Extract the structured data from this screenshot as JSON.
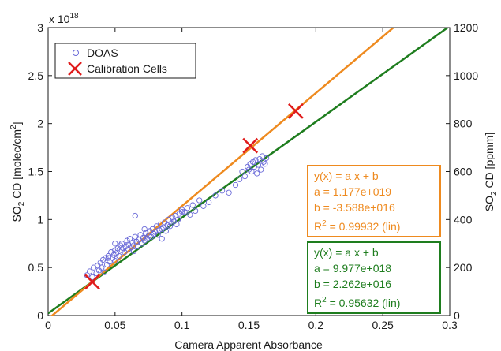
{
  "chart_data": {
    "type": "scatter",
    "xlabel": "Camera Apparent Absorbance",
    "ylabel": {
      "base": "SO",
      "sub": "2",
      "rest": " CD [molec/cm",
      "sup": "2",
      "end": "]"
    },
    "y2label": {
      "base": "SO",
      "sub": "2",
      "rest": " CD [ppmm]"
    },
    "exponent": {
      "prefix": "x 10",
      "power": "18"
    },
    "xlim": [
      0,
      0.3
    ],
    "ylim": [
      0,
      3
    ],
    "y2lim": [
      0,
      1200
    ],
    "xticks": [
      "0",
      "0.05",
      "0.1",
      "0.15",
      "0.2",
      "0.25",
      "0.3"
    ],
    "yticks": [
      "0",
      "0.5",
      "1",
      "1.5",
      "2",
      "2.5",
      "3"
    ],
    "y2ticks": [
      "0",
      "200",
      "400",
      "600",
      "800",
      "1000",
      "1200"
    ],
    "legend": {
      "position": "top-left",
      "entries": [
        {
          "label": "DOAS",
          "marker": "circle",
          "color": "#6a6ad8"
        },
        {
          "label": "Calibration Cells",
          "marker": "x",
          "color": "#e01b1b"
        }
      ]
    },
    "calibration_cells": {
      "color": "#e01b1b",
      "x": [
        0.033,
        0.151,
        0.185
      ],
      "y": [
        0.35,
        1.77,
        2.13
      ]
    },
    "doas": {
      "color": "#6a6ad8",
      "x": [
        0.029,
        0.031,
        0.033,
        0.034,
        0.036,
        0.037,
        0.038,
        0.039,
        0.04,
        0.041,
        0.042,
        0.043,
        0.044,
        0.045,
        0.046,
        0.047,
        0.048,
        0.049,
        0.05,
        0.05,
        0.051,
        0.052,
        0.053,
        0.054,
        0.055,
        0.055,
        0.056,
        0.057,
        0.058,
        0.059,
        0.06,
        0.06,
        0.061,
        0.062,
        0.063,
        0.064,
        0.064,
        0.065,
        0.066,
        0.067,
        0.068,
        0.069,
        0.07,
        0.071,
        0.072,
        0.073,
        0.074,
        0.075,
        0.076,
        0.077,
        0.078,
        0.079,
        0.08,
        0.081,
        0.082,
        0.083,
        0.084,
        0.085,
        0.086,
        0.087,
        0.088,
        0.089,
        0.09,
        0.091,
        0.092,
        0.093,
        0.094,
        0.095,
        0.096,
        0.097,
        0.098,
        0.1,
        0.102,
        0.104,
        0.106,
        0.108,
        0.11,
        0.113,
        0.116,
        0.12,
        0.125,
        0.13,
        0.135,
        0.14,
        0.143,
        0.145,
        0.147,
        0.149,
        0.15,
        0.151,
        0.152,
        0.153,
        0.154,
        0.155,
        0.156,
        0.157,
        0.158,
        0.159,
        0.16,
        0.161,
        0.162,
        0.163,
        0.065,
        0.072,
        0.085,
        0.1,
        0.05,
        0.045
      ],
      "y": [
        0.42,
        0.46,
        0.4,
        0.5,
        0.44,
        0.52,
        0.47,
        0.55,
        0.5,
        0.58,
        0.45,
        0.6,
        0.53,
        0.62,
        0.56,
        0.66,
        0.6,
        0.63,
        0.68,
        0.57,
        0.65,
        0.7,
        0.62,
        0.73,
        0.68,
        0.75,
        0.7,
        0.66,
        0.72,
        0.78,
        0.69,
        0.74,
        0.8,
        0.71,
        0.76,
        0.67,
        0.73,
        0.82,
        0.77,
        0.72,
        0.79,
        0.84,
        0.75,
        0.81,
        0.78,
        0.86,
        0.8,
        0.83,
        0.88,
        0.82,
        0.9,
        0.85,
        0.87,
        0.93,
        0.84,
        0.89,
        0.95,
        0.9,
        0.92,
        0.97,
        0.88,
        0.94,
        1.0,
        0.93,
        0.96,
        1.02,
        0.98,
        1.04,
        0.95,
        1.0,
        1.06,
        1.1,
        1.08,
        1.12,
        1.05,
        1.15,
        1.09,
        1.2,
        1.14,
        1.18,
        1.25,
        1.3,
        1.28,
        1.36,
        1.42,
        1.5,
        1.45,
        1.55,
        1.52,
        1.58,
        1.5,
        1.6,
        1.55,
        1.62,
        1.48,
        1.57,
        1.63,
        1.52,
        1.66,
        1.6,
        1.58,
        1.64,
        1.04,
        0.9,
        0.8,
        1.08,
        0.75,
        0.6
      ]
    },
    "fits": [
      {
        "name": "orange",
        "color": "#ee8a1f",
        "slope": 11.77,
        "intercept": -0.03588,
        "lines": [
          "y(x) = a x + b",
          "a = 1.177e+019",
          "b = -3.588e+016",
          "R",
          "2",
          " = 0.99932 (lin)"
        ]
      },
      {
        "name": "green",
        "color": "#1e7d1e",
        "slope": 9.977,
        "intercept": 0.02262,
        "lines": [
          "y(x) = a x + b",
          "a = 9.977e+018",
          "b = 2.262e+016",
          "R",
          "2",
          " = 0.95632 (lin)"
        ]
      }
    ]
  }
}
